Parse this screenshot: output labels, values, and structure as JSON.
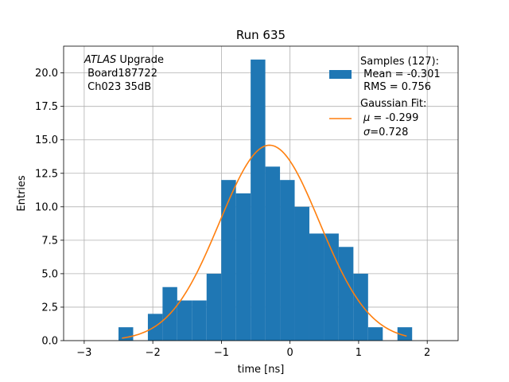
{
  "chart_data": {
    "type": "bar",
    "title": "Run 635",
    "xlabel": "time [ns]",
    "ylabel": "Entries",
    "xlim": [
      -3.3,
      2.45
    ],
    "ylim": [
      0,
      22
    ],
    "grid": true,
    "x_ticks": [
      -3,
      -2,
      -1,
      0,
      1,
      2
    ],
    "x_tick_labels": [
      "−3",
      "−2",
      "−1",
      "0",
      "1",
      "2"
    ],
    "y_ticks": [
      0,
      2.5,
      5,
      7.5,
      10,
      12.5,
      15,
      17.5,
      20
    ],
    "y_tick_labels": [
      "0.0",
      "2.5",
      "5.0",
      "7.5",
      "10.0",
      "12.5",
      "15.0",
      "17.5",
      "20.0"
    ],
    "bin_edges": [
      -2.5,
      -2.286,
      -2.072,
      -1.858,
      -1.644,
      -1.43,
      -1.216,
      -1.002,
      -0.788,
      -0.574,
      -0.36,
      -0.146,
      0.068,
      0.282,
      0.496,
      0.71,
      0.924,
      1.138,
      1.352,
      1.566,
      1.78
    ],
    "counts": [
      1,
      0,
      2,
      4,
      3,
      3,
      5,
      12,
      11,
      21,
      13,
      12,
      10,
      8,
      8,
      7,
      5,
      1,
      0,
      1
    ],
    "hist_color": "#1f77b4",
    "fit": {
      "name": "Gaussian Fit",
      "mu": -0.299,
      "sigma": 0.728,
      "amplitude": 14.6,
      "x_range": [
        -2.45,
        1.7
      ],
      "color": "#ff7f0e"
    },
    "annotation": {
      "italic": "ATLAS",
      "rest": " Upgrade",
      "line2": " Board187722",
      "line3": " Ch023 35dB"
    },
    "legend": {
      "placement": "top-right",
      "samples_title": "Samples (127):",
      "samples_mean": " Mean = -0.301",
      "samples_rms": " RMS = 0.756",
      "fit_title": "Gaussian Fit:",
      "fit_mu_symbol": "μ",
      "fit_mu_text": " = -0.299",
      "fit_sigma_symbol": "σ",
      "fit_sigma_text": "=0.728"
    }
  }
}
